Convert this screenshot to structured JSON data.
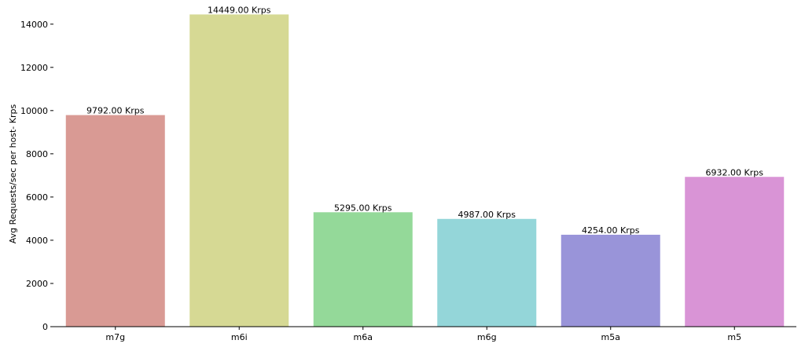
{
  "chart_data": {
    "type": "bar",
    "title": "",
    "xlabel": "",
    "ylabel": "Avg Requests/sec per host- Krps",
    "ylim": [
      0,
      14500
    ],
    "yticks": [
      0,
      2000,
      4000,
      6000,
      8000,
      10000,
      12000,
      14000
    ],
    "grid": false,
    "legend": "none",
    "categories": [
      "m7g",
      "m6i",
      "m6a",
      "m6g",
      "m5a",
      "m5"
    ],
    "values": [
      9792,
      14449,
      5295,
      4987,
      4254,
      6932
    ],
    "data_labels": [
      "9792.00 Krps",
      "14449.00 Krps",
      "5295.00 Krps",
      "4987.00 Krps",
      "4254.00 Krps",
      "6932.00 Krps"
    ],
    "colors": [
      "#d99a94",
      "#d6d994",
      "#94d999",
      "#94d6d9",
      "#9994d9",
      "#d994d6"
    ]
  }
}
